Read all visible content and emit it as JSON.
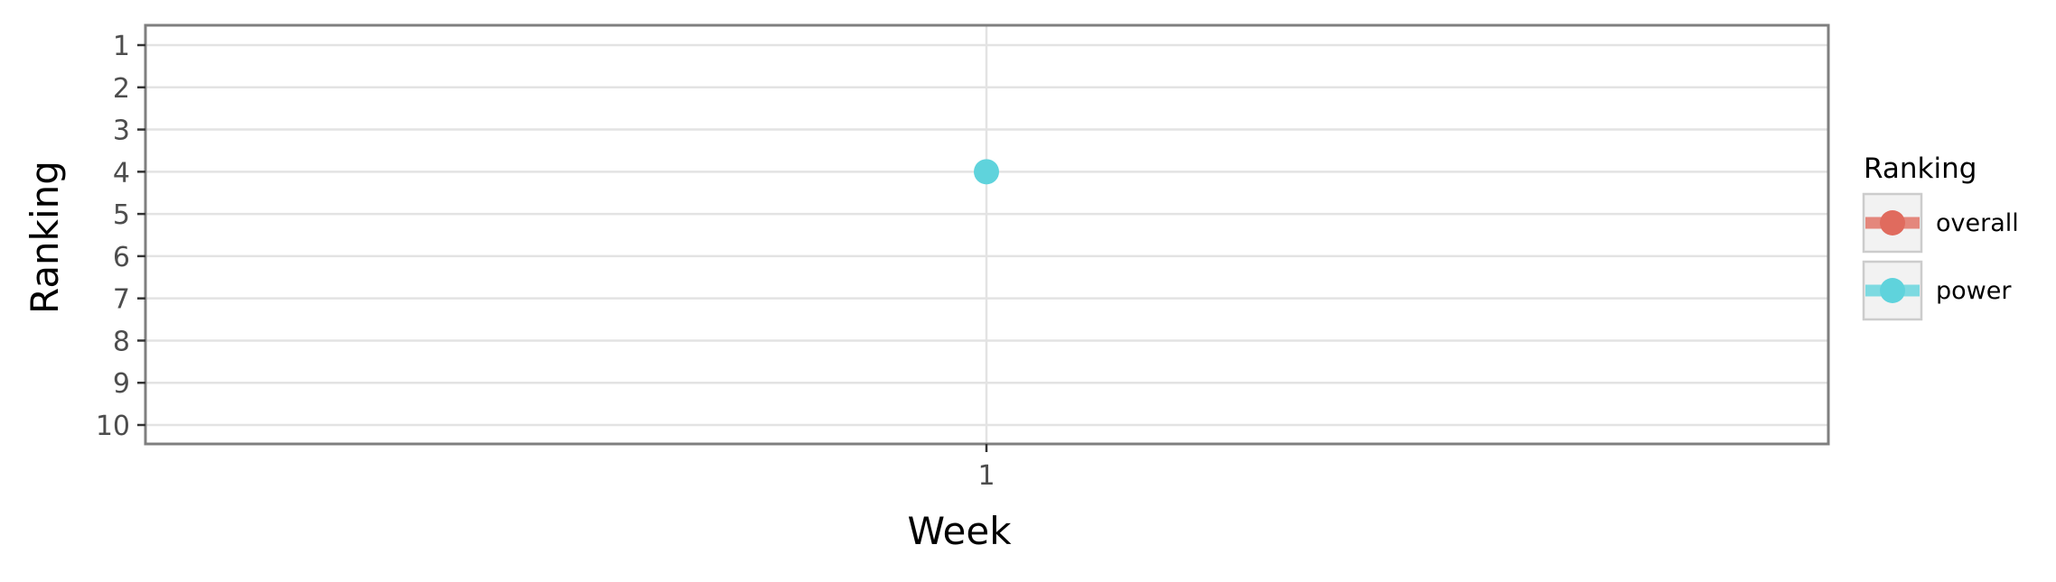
{
  "chart_data": {
    "type": "line",
    "xlabel": "Week",
    "ylabel": "Ranking",
    "x_categories": [
      "1"
    ],
    "y_ticks": [
      1,
      2,
      3,
      4,
      5,
      6,
      7,
      8,
      9,
      10
    ],
    "ylim": [
      1,
      10
    ],
    "y_reversed": true,
    "grid": true,
    "legend": {
      "title": "Ranking",
      "placement": "right",
      "entries": [
        {
          "label": "overall",
          "color": "#e06b5e"
        },
        {
          "label": "power",
          "color": "#5fd3dc"
        }
      ]
    },
    "series": [
      {
        "name": "overall",
        "color": "#e06b5e",
        "points": []
      },
      {
        "name": "power",
        "color": "#5fd3dc",
        "points": [
          {
            "x": "1",
            "y": 4
          }
        ]
      }
    ]
  }
}
